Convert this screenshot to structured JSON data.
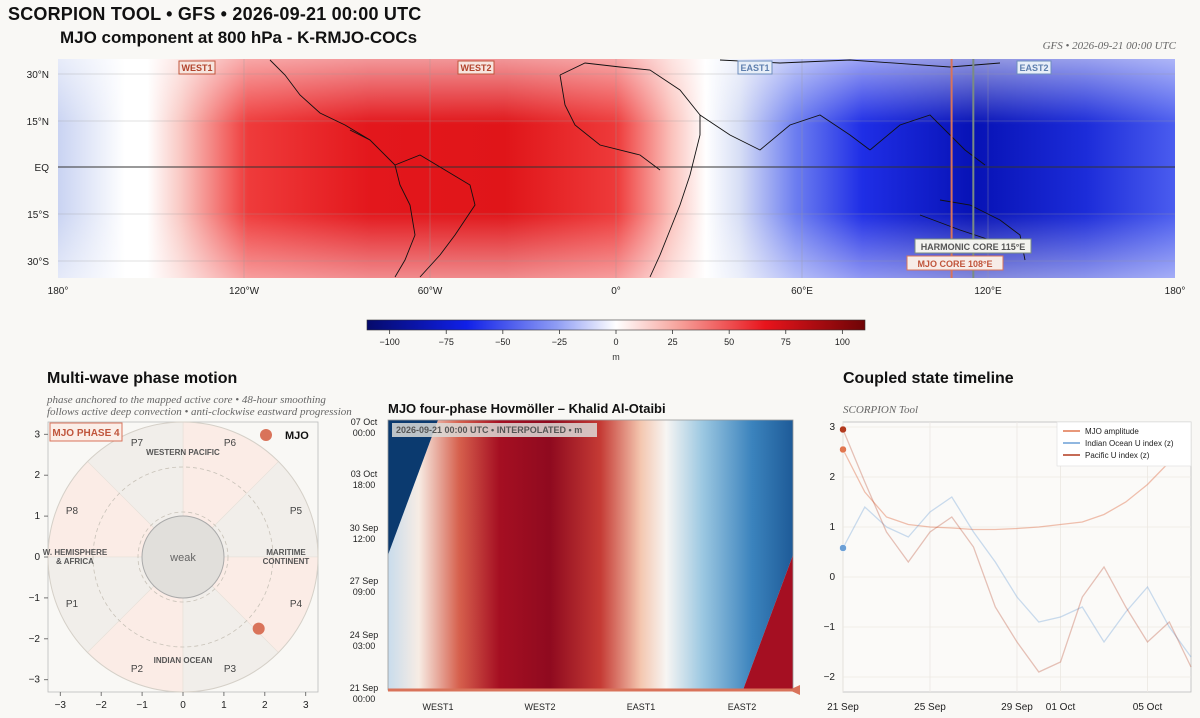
{
  "header": {
    "title": "SCORPION TOOL  •  GFS  •  2026-09-21 00:00 UTC",
    "subtitle": "MJO component at 800 hPa - K-RMJO-COCs",
    "stamp": "GFS  •  2026-09-21 00:00 UTC"
  },
  "map": {
    "x_ticks": [
      "180°",
      "120°W",
      "60°W",
      "0°",
      "60°E",
      "120°E",
      "180°"
    ],
    "y_ticks": [
      "30°N",
      "15°N",
      "EQ",
      "15°S",
      "30°S"
    ],
    "boxes": [
      "WEST1",
      "WEST2",
      "EAST1",
      "EAST2"
    ],
    "harmonic_core_label": "HARMONIC CORE  115°E",
    "mjo_core_label": "MJO CORE  108°E",
    "harmonic_core_lon": 115,
    "mjo_core_lon": 108
  },
  "colorbar": {
    "ticks": [
      "−100",
      "−75",
      "−50",
      "−25",
      "0",
      "25",
      "50",
      "75",
      "100"
    ],
    "unit": "m",
    "range": [
      -110,
      110
    ]
  },
  "phase_panel": {
    "title": "Multi-wave phase motion",
    "note_line1": "phase anchored to the mapped active core • 48-hour smoothing",
    "note_line2": "follows active deep convection • anti-clockwise eastward progression",
    "badge": "MJO PHASE 4",
    "legend": "MJO",
    "phases": [
      "P1",
      "P2",
      "P3",
      "P4",
      "P5",
      "P6",
      "P7",
      "P8"
    ],
    "regions": {
      "top": "WESTERN PACIFIC",
      "right_line1": "MARITIME",
      "right_line2": "CONTINENT",
      "bottom": "INDIAN OCEAN",
      "left_line1": "W. HEMISPHERE",
      "left_line2": "& AFRICA"
    },
    "center_label": "weak",
    "x_ticks": [
      "−3",
      "−2",
      "−1",
      "0",
      "1",
      "2",
      "3"
    ],
    "y_ticks": [
      "3",
      "2",
      "1",
      "0",
      "−1",
      "−2",
      "−3"
    ],
    "mjo_point": {
      "x": 1.85,
      "y": -1.75
    }
  },
  "hovmoller": {
    "title": "MJO four-phase Hovmöller – Khalid Al-Otaibi",
    "banner": "2026-09-21 00:00 UTC  •  INTERPOLATED  •  m",
    "y_ticks": [
      {
        "line1": "07 Oct",
        "line2": "00:00"
      },
      {
        "line1": "03 Oct",
        "line2": "18:00"
      },
      {
        "line1": "30 Sep",
        "line2": "12:00"
      },
      {
        "line1": "27 Sep",
        "line2": "09:00"
      },
      {
        "line1": "24 Sep",
        "line2": "03:00"
      },
      {
        "line1": "21 Sep",
        "line2": "00:00"
      }
    ],
    "x_ticks": [
      "WEST1",
      "WEST2",
      "EAST1",
      "EAST2"
    ]
  },
  "timeline": {
    "title": "Coupled state timeline",
    "subtitle": "SCORPION Tool",
    "legend": [
      "MJO amplitude",
      "Indian Ocean U index (z)",
      "Pacific U index (z)"
    ],
    "colors": {
      "amp": "#e0764f",
      "io": "#6b9fd6",
      "pac": "#b23a1e"
    },
    "y_ticks": [
      "3",
      "2",
      "1",
      "0",
      "−1",
      "−2"
    ],
    "x_ticks": [
      "21 Sep",
      "25 Sep",
      "29 Sep",
      "01 Oct",
      "05 Oct"
    ]
  },
  "chart_data": [
    {
      "type": "heatmap",
      "title": "MJO component at 800 hPa - K-RMJO-COCs",
      "x_range_lon": [
        -180,
        180
      ],
      "y_range_lat": [
        -35,
        35
      ],
      "colorbar_range": [
        -110,
        110
      ],
      "unit": "m",
      "features": [
        {
          "region": "east Pacific to Atlantic (145°W–10°E)",
          "sign": "positive",
          "peak": 95
        },
        {
          "region": "Indian Ocean to Pacific (60°E–180°)",
          "sign": "negative",
          "peak": -105
        }
      ]
    },
    {
      "type": "scatter",
      "title": "Multi-wave phase motion",
      "xlim": [
        -3.3,
        3.3
      ],
      "ylim": [
        -3.3,
        3.3
      ],
      "series": [
        {
          "name": "MJO",
          "x": [
            1.85
          ],
          "y": [
            -1.75
          ]
        }
      ]
    },
    {
      "type": "heatmap",
      "title": "MJO four-phase Hovmöller – Khalid Al-Otaibi",
      "x": [
        "WEST1",
        "WEST2",
        "EAST1",
        "EAST2"
      ],
      "y_range": [
        "21 Sep 00:00",
        "07 Oct 00:00"
      ],
      "unit": "m"
    },
    {
      "type": "line",
      "title": "Coupled state timeline",
      "ylim": [
        -2.3,
        3.1
      ],
      "x_range": [
        "21 Sep",
        "07 Oct"
      ],
      "series": [
        {
          "name": "MJO amplitude",
          "x_days": [
            0,
            1,
            2,
            3,
            4,
            5,
            6,
            7,
            8,
            9,
            10,
            11,
            12,
            13,
            14,
            15,
            16
          ],
          "values": [
            2.55,
            1.7,
            1.2,
            1.05,
            1.0,
            0.98,
            0.95,
            0.95,
            0.97,
            1.0,
            1.05,
            1.1,
            1.25,
            1.5,
            1.85,
            2.3,
            2.75
          ]
        },
        {
          "name": "Indian Ocean U index (z)",
          "x_days": [
            0,
            1,
            2,
            3,
            4,
            5,
            6,
            7,
            8,
            9,
            10,
            11,
            12,
            13,
            14,
            15,
            16
          ],
          "values": [
            0.58,
            1.4,
            1.0,
            0.8,
            1.3,
            1.6,
            0.9,
            0.3,
            -0.4,
            -0.9,
            -0.8,
            -0.6,
            -1.3,
            -0.7,
            -0.2,
            -1.0,
            -1.6
          ]
        },
        {
          "name": "Pacific U index (z)",
          "x_days": [
            0,
            1,
            2,
            3,
            4,
            5,
            6,
            7,
            8,
            9,
            10,
            11,
            12,
            13,
            14,
            15,
            16
          ],
          "values": [
            2.95,
            1.9,
            0.9,
            0.3,
            0.9,
            1.2,
            0.6,
            -0.6,
            -1.3,
            -1.9,
            -1.7,
            -0.4,
            0.2,
            -0.6,
            -1.3,
            -0.9,
            -1.8
          ]
        }
      ]
    }
  ]
}
